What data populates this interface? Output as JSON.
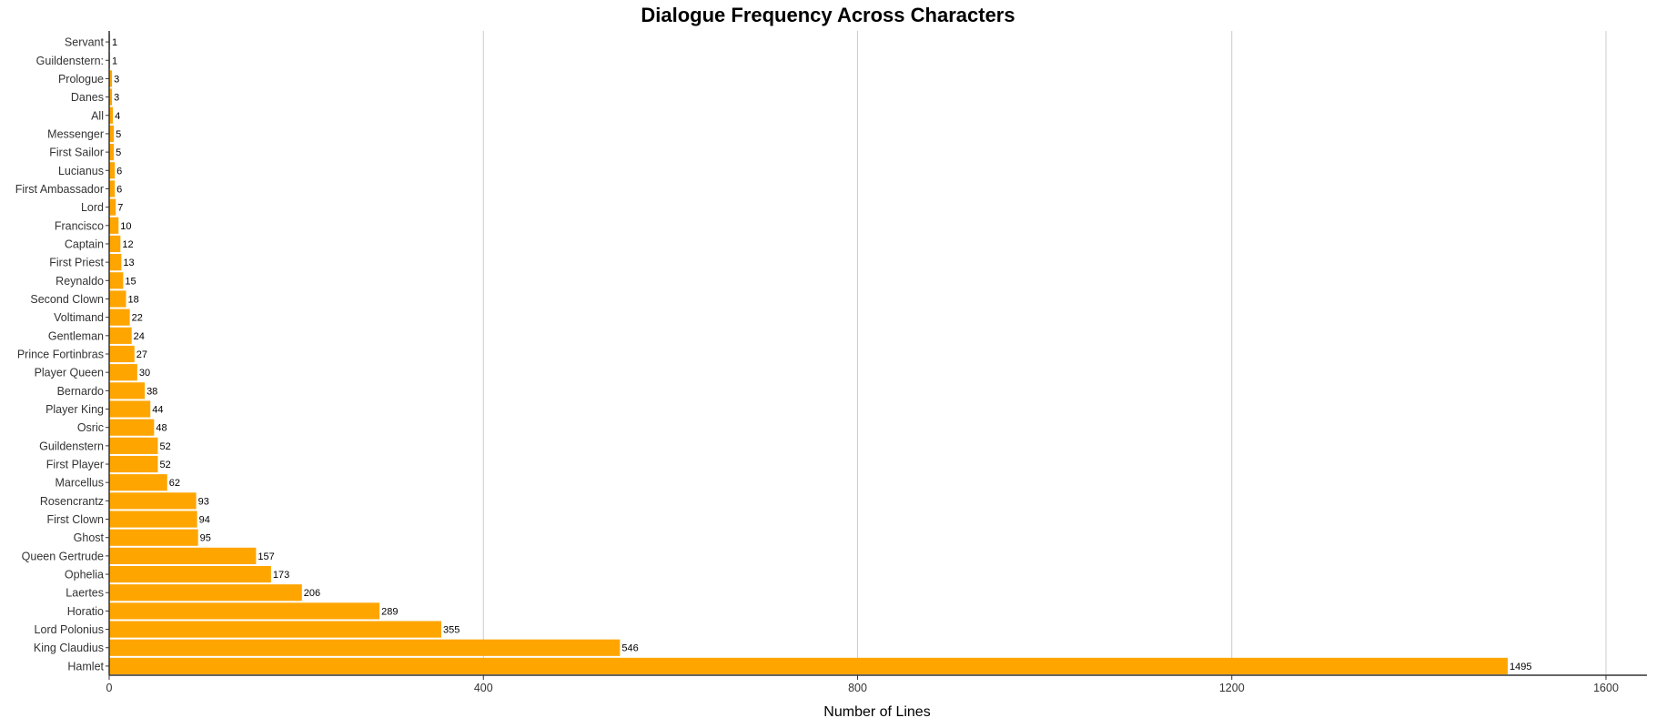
{
  "chart_data": {
    "type": "bar",
    "orientation": "horizontal",
    "title": "Dialogue Frequency Across Characters",
    "xlabel": "Number of Lines",
    "ylabel": "",
    "xlim": [
      0,
      1640
    ],
    "xticks": [
      0,
      400,
      800,
      1200,
      1600
    ],
    "grid": "vertical",
    "bar_color": "#ffa500",
    "categories": [
      "Servant",
      "Guildenstern:",
      "Prologue",
      "Danes",
      "All",
      "Messenger",
      "First Sailor",
      "Lucianus",
      "First Ambassador",
      "Lord",
      "Francisco",
      "Captain",
      "First Priest",
      "Reynaldo",
      "Second Clown",
      "Voltimand",
      "Gentleman",
      "Prince Fortinbras",
      "Player Queen",
      "Bernardo",
      "Player King",
      "Osric",
      "Guildenstern",
      "First Player",
      "Marcellus",
      "Rosencrantz",
      "First Clown",
      "Ghost",
      "Queen Gertrude",
      "Ophelia",
      "Laertes",
      "Horatio",
      "Lord Polonius",
      "King Claudius",
      "Hamlet"
    ],
    "values": [
      1,
      1,
      3,
      3,
      4,
      5,
      5,
      6,
      6,
      7,
      10,
      12,
      13,
      15,
      18,
      22,
      24,
      27,
      30,
      38,
      44,
      48,
      52,
      52,
      62,
      93,
      94,
      95,
      157,
      173,
      206,
      289,
      355,
      546,
      1495
    ]
  }
}
